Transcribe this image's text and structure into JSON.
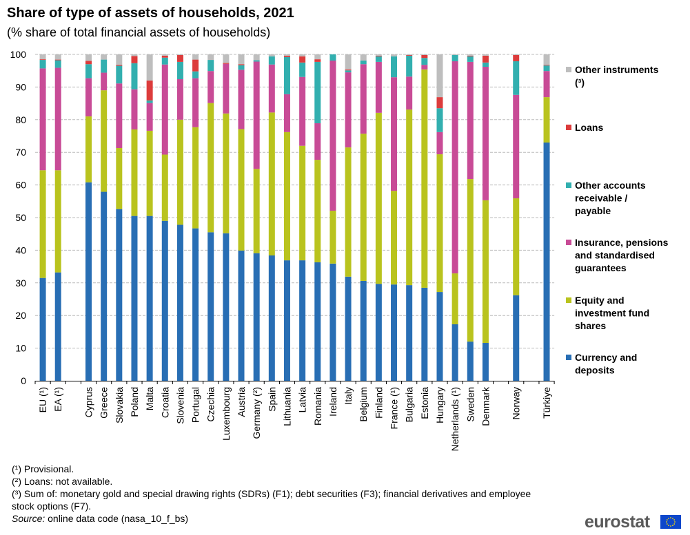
{
  "title": "Share of type of assets of households, 2021",
  "subtitle": "(% share of total financial assets of households)",
  "chart_data": {
    "type": "bar",
    "stacked": true,
    "ylim": [
      0,
      100
    ],
    "yticks": [
      "0",
      "10",
      "20",
      "30",
      "40",
      "50",
      "60",
      "70",
      "80",
      "90",
      "100"
    ],
    "grid": true,
    "legend_position": "right",
    "categories": [
      "EU (¹)",
      "EA (¹)",
      "",
      "Cyprus",
      "Greece",
      "Slovakia",
      "Poland",
      "Malta",
      "Croatia",
      "Slovenia",
      "Portugal",
      "Czechia",
      "Luxembourg",
      "Austria",
      "Germany (²)",
      "Spain",
      "Lithuania",
      "Latvia",
      "Romania",
      "Ireland",
      "Italy",
      "Belgium",
      "Finland",
      "France (¹)",
      "Bulgaria",
      "Estonia",
      "Hungary",
      "Netherlands (¹)",
      "Sweden",
      "Denmark",
      "",
      "Norway",
      "",
      "Türkiye"
    ],
    "series": [
      {
        "name": "Currency and deposits",
        "color": "#286eb4",
        "values": [
          31.5,
          33.2,
          null,
          60.8,
          57.9,
          52.6,
          50.5,
          50.5,
          49.0,
          47.8,
          46.7,
          45.5,
          45.2,
          39.9,
          39.1,
          38.4,
          36.9,
          36.9,
          36.3,
          35.9,
          31.9,
          30.6,
          29.7,
          29.5,
          29.3,
          28.5,
          27.2,
          17.3,
          12.0,
          11.6,
          null,
          26.2,
          null,
          73.0
        ]
      },
      {
        "name": "Equity and investment fund shares",
        "color": "#b9c31e",
        "values": [
          33.0,
          31.3,
          null,
          20.2,
          31.1,
          18.7,
          26.5,
          26.1,
          20.3,
          32.2,
          31.0,
          39.6,
          36.7,
          37.2,
          25.8,
          43.8,
          39.3,
          35.1,
          31.4,
          16.2,
          39.6,
          45.1,
          52.4,
          28.7,
          53.8,
          66.9,
          42.2,
          15.6,
          49.8,
          43.7,
          null,
          29.7,
          null,
          13.9
        ]
      },
      {
        "name": "Insurance, pensions and standardised guarantees",
        "color": "#c84b96",
        "values": [
          31.2,
          31.4,
          null,
          11.7,
          5.4,
          19.8,
          12.3,
          8.5,
          27.6,
          12.4,
          15.0,
          9.8,
          15.2,
          18.2,
          32.9,
          14.7,
          11.6,
          21.1,
          11.2,
          46.0,
          23.0,
          21.3,
          15.6,
          34.8,
          10.1,
          1.4,
          6.8,
          65.0,
          35.9,
          40.9,
          null,
          31.7,
          null,
          8.0
        ]
      },
      {
        "name": "Other accounts receivable / payable",
        "color": "#32afaf",
        "values": [
          2.6,
          2.3,
          null,
          4.3,
          4.0,
          5.4,
          8.0,
          0.8,
          2.1,
          5.3,
          2.1,
          3.4,
          0.0,
          1.4,
          0.4,
          2.5,
          11.4,
          4.4,
          18.8,
          1.9,
          0.6,
          1.1,
          1.7,
          6.4,
          6.4,
          2.1,
          7.3,
          1.9,
          1.7,
          1.3,
          null,
          10.3,
          null,
          1.7
        ]
      },
      {
        "name": "Loans",
        "color": "#dc3c3c",
        "values": [
          0.2,
          0.2,
          null,
          1.0,
          0.0,
          0.3,
          2.2,
          6.1,
          0.6,
          2.1,
          3.6,
          0.0,
          0.3,
          0.3,
          0.0,
          0.0,
          0.4,
          1.9,
          0.8,
          0.0,
          0.3,
          0.0,
          0.2,
          0.0,
          0.2,
          0.9,
          3.4,
          0.0,
          0.2,
          2.1,
          null,
          1.9,
          null,
          0.2
        ]
      },
      {
        "name": "Other instruments (³)",
        "color": "#bebebe",
        "values": [
          1.5,
          1.6,
          null,
          2.0,
          1.6,
          3.2,
          0.5,
          8.0,
          0.4,
          0.2,
          1.6,
          1.7,
          2.6,
          3.0,
          1.8,
          0.6,
          0.4,
          0.6,
          1.5,
          0.0,
          4.6,
          1.9,
          0.4,
          0.6,
          0.2,
          0.2,
          13.1,
          0.2,
          0.4,
          0.4,
          null,
          0.2,
          null,
          3.2
        ]
      }
    ]
  },
  "notes": [
    "(¹) Provisional.",
    "(²) Loans: not available.",
    "(³) Sum of: monetary gold and special drawing rights (SDRs) (F1); debt securities (F3); financial derivatives and employee stock options (F7)."
  ],
  "source": {
    "label": "Source:",
    "text": " online data code (nasa_10_f_bs)"
  },
  "logo": "eurostat"
}
